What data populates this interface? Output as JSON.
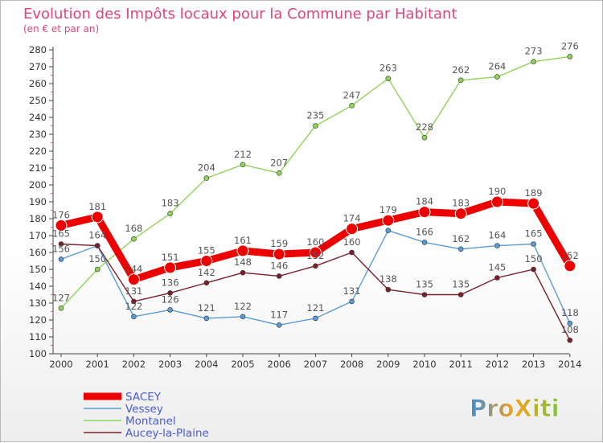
{
  "chart_data": {
    "type": "line",
    "title": "Evolution des Impôts locaux pour la Commune par Habitant",
    "subtitle": "(en € et par an)",
    "xlabel": "",
    "ylabel": "",
    "x": [
      "2000",
      "2001",
      "2002",
      "2003",
      "2004",
      "2005",
      "2006",
      "2007",
      "2008",
      "2009",
      "2010",
      "2011",
      "2012",
      "2013",
      "2014"
    ],
    "ylim": [
      100,
      280
    ],
    "yticks": [
      100,
      110,
      120,
      130,
      140,
      150,
      160,
      170,
      180,
      190,
      200,
      210,
      220,
      230,
      240,
      250,
      260,
      270,
      280
    ],
    "grid": false,
    "legend_position": "bottom-left",
    "series": [
      {
        "name": "SACEY",
        "color": "#ee0000",
        "values": [
          176,
          181,
          144,
          151,
          155,
          161,
          159,
          160,
          174,
          179,
          184,
          183,
          190,
          189,
          152
        ]
      },
      {
        "name": "Vessey",
        "color": "#5b9bd5",
        "values": [
          156,
          164,
          122,
          126,
          121,
          122,
          117,
          121,
          131,
          173,
          166,
          162,
          164,
          165,
          118
        ],
        "labels": [
          "156",
          "",
          "122",
          "126",
          "121",
          "122",
          "117",
          "121",
          "131",
          "",
          "166",
          "162",
          "164",
          "165",
          "118"
        ]
      },
      {
        "name": "Montanel",
        "color": "#8fd35a",
        "values": [
          127,
          150,
          168,
          183,
          204,
          212,
          207,
          235,
          247,
          263,
          228,
          262,
          264,
          273,
          276
        ]
      },
      {
        "name": "Aucey-la-Plaine",
        "color": "#7a1f2b",
        "values": [
          165,
          164,
          131,
          136,
          142,
          148,
          146,
          152,
          160,
          138,
          135,
          135,
          145,
          150,
          108
        ]
      }
    ]
  },
  "watermark": "ProXiti"
}
